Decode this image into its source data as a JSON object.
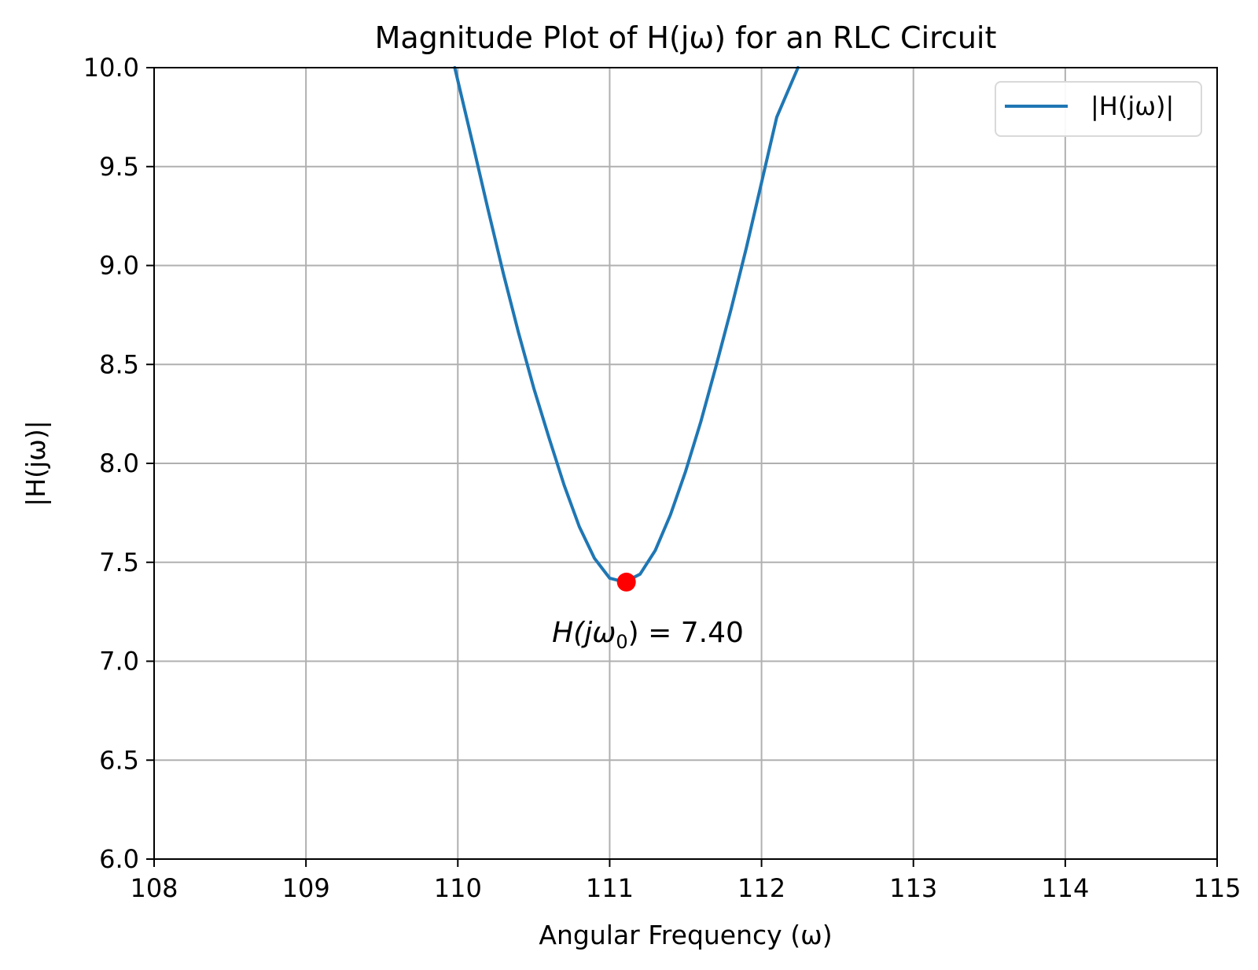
{
  "chart_data": {
    "type": "line",
    "title": "Magnitude Plot of H(jω) for an RLC Circuit",
    "xlabel": "Angular Frequency (ω)",
    "ylabel": "|H(jω)|",
    "xlim": [
      108,
      115
    ],
    "ylim": [
      6.0,
      10.0
    ],
    "xticks": [
      108,
      109,
      110,
      111,
      112,
      113,
      114,
      115
    ],
    "xtick_labels": [
      "108",
      "109",
      "110",
      "111",
      "112",
      "113",
      "114",
      "115"
    ],
    "yticks": [
      6.0,
      6.5,
      7.0,
      7.5,
      8.0,
      8.5,
      9.0,
      9.5,
      10.0
    ],
    "ytick_labels": [
      "6.0",
      "6.5",
      "7.0",
      "7.5",
      "8.0",
      "8.5",
      "9.0",
      "9.5",
      "10.0"
    ],
    "grid": true,
    "legend_position": "upper-right",
    "series": [
      {
        "name": "|H(jω)|",
        "color": "#1f77b4",
        "x": [
          109.98,
          110.1,
          110.2,
          110.3,
          110.4,
          110.5,
          110.6,
          110.7,
          110.8,
          110.9,
          111.0,
          111.1,
          111.2,
          111.3,
          111.4,
          111.5,
          111.6,
          111.7,
          111.8,
          111.9,
          112.0,
          112.1,
          112.24
        ],
        "y": [
          10.0,
          9.61,
          9.28,
          8.96,
          8.66,
          8.38,
          8.13,
          7.89,
          7.68,
          7.52,
          7.42,
          7.4,
          7.44,
          7.56,
          7.74,
          7.96,
          8.21,
          8.49,
          8.78,
          9.09,
          9.42,
          9.75,
          10.0
        ]
      }
    ],
    "highlight_point": {
      "x": 111.11,
      "y": 7.4,
      "color": "#ff0000"
    },
    "annotation": {
      "prefix": "H(jω",
      "subscript": "0",
      "suffix": ") = 7.40"
    }
  }
}
